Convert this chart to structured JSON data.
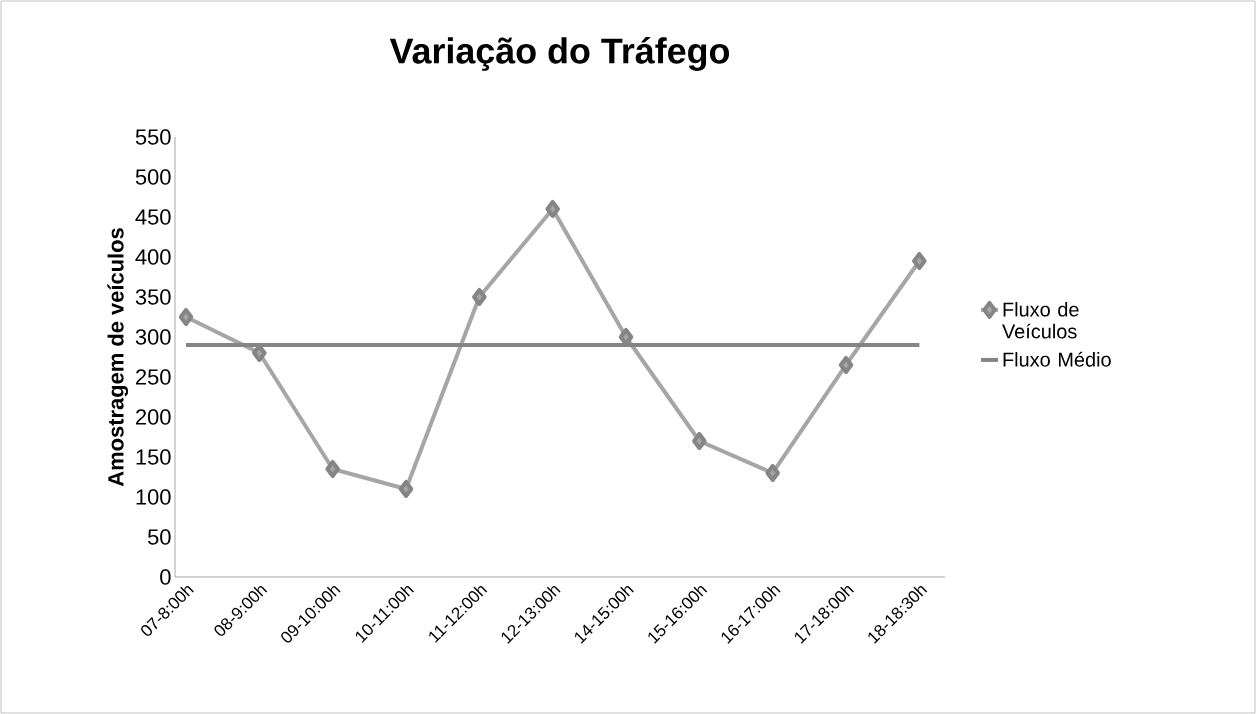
{
  "chart_data": {
    "type": "line",
    "title": "Variação do Tráfego",
    "ylabel": "Amostragem de veículos",
    "categories": [
      "07-8:00h",
      "08-9:00h",
      "09-10:00h",
      "10-11:00h",
      "11-12:00h",
      "12-13:00h",
      "14-15:00h",
      "15-16:00h",
      "16-17:00h",
      "17-18:00h",
      "18-18:30h"
    ],
    "series": [
      {
        "name": "Fluxo de Veículos",
        "color": "#a6a6a6",
        "marker": "diamond",
        "values": [
          325,
          280,
          135,
          110,
          350,
          460,
          300,
          170,
          130,
          265,
          395
        ]
      },
      {
        "name": "Fluxo Médio",
        "color": "#858585",
        "marker": "none",
        "values": [
          290,
          290,
          290,
          290,
          290,
          290,
          290,
          290,
          290,
          290,
          290
        ]
      }
    ],
    "ylim": [
      0,
      550
    ],
    "yticks": [
      0,
      50,
      100,
      150,
      200,
      250,
      300,
      350,
      400,
      450,
      500,
      550
    ],
    "grid": false,
    "legend": "right"
  }
}
